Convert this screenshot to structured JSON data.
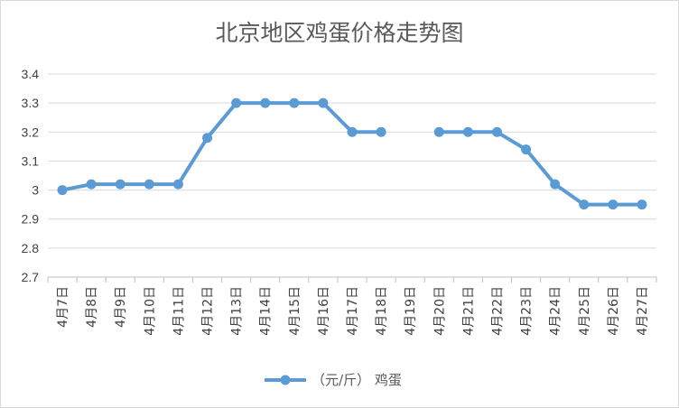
{
  "chart_data": {
    "type": "line",
    "title": "北京地区鸡蛋价格走势图",
    "xlabel": "",
    "ylabel": "",
    "categories": [
      "4月7日",
      "4月8日",
      "4月9日",
      "4月10日",
      "4月11日",
      "4月12日",
      "4月13日",
      "4月14日",
      "4月15日",
      "4月16日",
      "4月17日",
      "4月18日",
      "4月19日",
      "4月20日",
      "4月21日",
      "4月22日",
      "4月23日",
      "4月24日",
      "4月25日",
      "4月26日",
      "4月27日"
    ],
    "series": [
      {
        "name": "（元/斤） 鸡蛋",
        "values": [
          3.0,
          3.02,
          3.02,
          3.02,
          3.02,
          3.18,
          3.3,
          3.3,
          3.3,
          3.3,
          3.2,
          3.2,
          null,
          3.2,
          3.2,
          3.2,
          3.14,
          3.02,
          2.95,
          2.95,
          2.95
        ],
        "color": "#5b9bd5"
      }
    ],
    "ylim": [
      2.7,
      3.4
    ],
    "yticks": [
      "2.7",
      "2.8",
      "2.9",
      "3",
      "3.1",
      "3.2",
      "3.3",
      "3.4"
    ],
    "grid": true,
    "legend": "bottom-center"
  }
}
